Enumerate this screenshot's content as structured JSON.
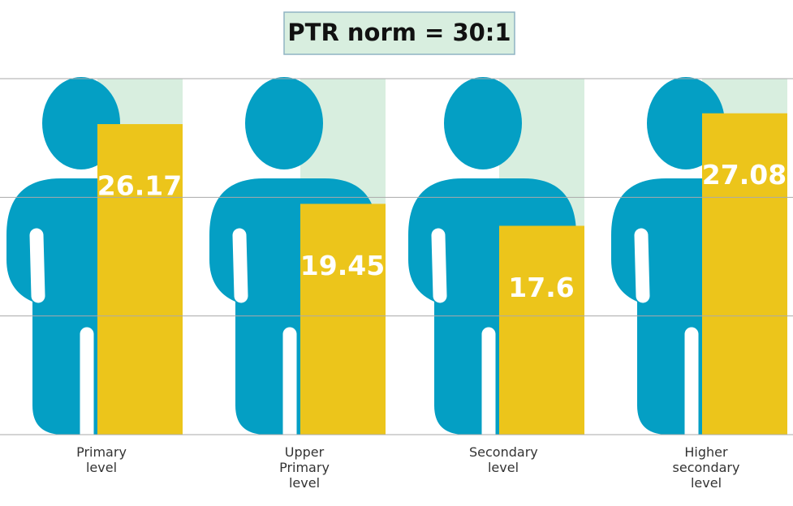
{
  "chart_data": {
    "type": "bar",
    "title": "PTR norm = 30:1",
    "categories": [
      "Primary level",
      "Upper Primary level",
      "Secondary level",
      "Higher secondary level"
    ],
    "values": [
      26.17,
      19.45,
      17.6,
      27.08
    ],
    "color": "#ecc51b",
    "figure_color": "#049fc4",
    "norm_color": "#d8eedf",
    "ylim": [
      0,
      30
    ],
    "yticks": [
      0,
      10,
      20,
      30
    ],
    "grid": true
  }
}
